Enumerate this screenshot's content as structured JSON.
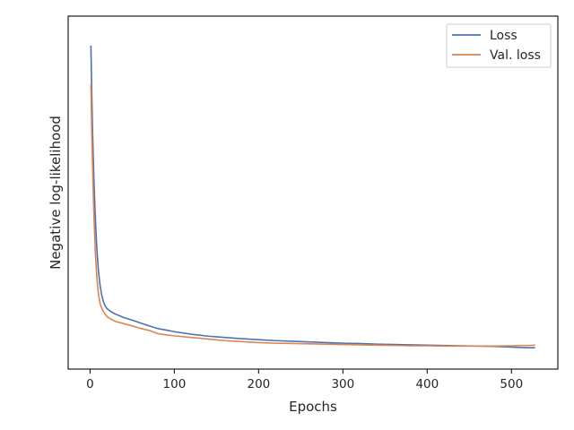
{
  "chart_data": {
    "type": "line",
    "title": "",
    "xlabel": "Epochs",
    "ylabel": "Negative log-likelihood",
    "xlim": [
      -26,
      555
    ],
    "ylim": [
      0,
      1
    ],
    "x_ticks": [
      0,
      100,
      200,
      300,
      400,
      500
    ],
    "x_tick_labels": [
      "0",
      "100",
      "200",
      "300",
      "400",
      "500"
    ],
    "y_tick_labels": [],
    "grid": false,
    "legend_position": "top-right",
    "series": [
      {
        "name": "Loss",
        "color": "#4c72b0",
        "x": [
          1,
          2,
          3,
          4,
          5,
          6,
          7,
          8,
          9,
          10,
          12,
          14,
          16,
          18,
          20,
          25,
          30,
          40,
          50,
          60,
          70,
          80,
          90,
          100,
          120,
          140,
          160,
          180,
          200,
          220,
          240,
          260,
          280,
          300,
          320,
          340,
          360,
          380,
          400,
          420,
          440,
          460,
          480,
          500,
          510,
          520,
          528
        ],
        "y": [
          0.95,
          0.8,
          0.68,
          0.58,
          0.5,
          0.43,
          0.37,
          0.32,
          0.28,
          0.245,
          0.2,
          0.17,
          0.15,
          0.138,
          0.13,
          0.12,
          0.113,
          0.102,
          0.094,
          0.085,
          0.076,
          0.068,
          0.063,
          0.058,
          0.05,
          0.044,
          0.04,
          0.036,
          0.033,
          0.03,
          0.028,
          0.026,
          0.024,
          0.022,
          0.021,
          0.019,
          0.018,
          0.017,
          0.016,
          0.015,
          0.014,
          0.013,
          0.012,
          0.01,
          0.009,
          0.008,
          0.008
        ]
      },
      {
        "name": "Val. loss",
        "color": "#dd8452",
        "x": [
          1,
          2,
          3,
          4,
          5,
          6,
          7,
          8,
          9,
          10,
          12,
          14,
          16,
          18,
          20,
          25,
          30,
          40,
          50,
          60,
          70,
          80,
          90,
          100,
          120,
          140,
          160,
          180,
          200,
          220,
          240,
          260,
          280,
          300,
          320,
          340,
          360,
          380,
          400,
          420,
          440,
          460,
          480,
          500,
          510,
          520,
          528
        ],
        "y": [
          0.83,
          0.68,
          0.57,
          0.47,
          0.39,
          0.32,
          0.27,
          0.23,
          0.2,
          0.175,
          0.145,
          0.13,
          0.12,
          0.112,
          0.105,
          0.097,
          0.09,
          0.083,
          0.076,
          0.068,
          0.062,
          0.052,
          0.048,
          0.045,
          0.04,
          0.035,
          0.03,
          0.027,
          0.024,
          0.022,
          0.021,
          0.02,
          0.019,
          0.018,
          0.017,
          0.016,
          0.015,
          0.014,
          0.014,
          0.013,
          0.013,
          0.013,
          0.013,
          0.014,
          0.015,
          0.015,
          0.016
        ]
      }
    ]
  }
}
